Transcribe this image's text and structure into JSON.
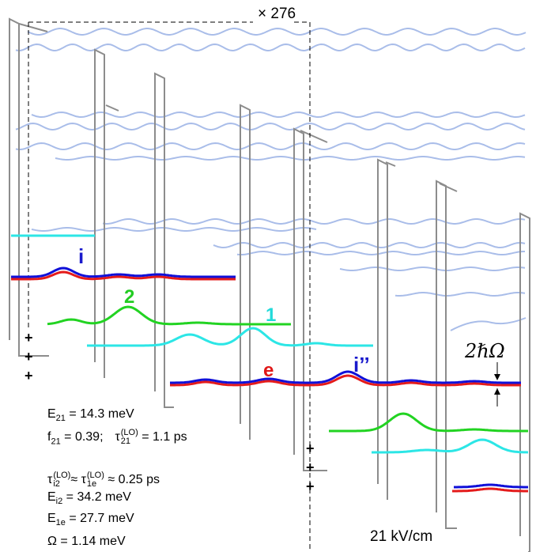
{
  "magnification": "× 276",
  "field": "21 kV/cm",
  "splitting_label": "2ℏΩ",
  "state_labels": {
    "i": "i",
    "two": "2",
    "one": "1",
    "e": "e",
    "i_double_prime": "i’’"
  },
  "plus_signs": [
    "+",
    "+",
    "+"
  ],
  "params": {
    "E21": {
      "sym": "E",
      "sub": "21",
      "val": " = 14.3 meV"
    },
    "f21": {
      "sym": "f",
      "sub": "21",
      "val": " = 0.39;"
    },
    "tau21": {
      "sym": "τ",
      "sup": "(LO)",
      "sub": "21",
      "val": " = 1.1 ps"
    },
    "tau_i2": {
      "sym": "τ",
      "sup": "(LO)",
      "sub": "i2",
      "sep": "≈"
    },
    "tau_1e": {
      "sym": "τ",
      "sup": "(LO)",
      "sub": "1e",
      "val": " ≈ 0.25 ps"
    },
    "Ei2": {
      "sym": "E",
      "sub": "i2",
      "val": " = 34.2 meV"
    },
    "E1e": {
      "sym": "E",
      "sub": "1e",
      "val": " = 27.7 meV"
    },
    "Omega": {
      "sym": "Ω",
      "val": " = 1.14 meV"
    }
  },
  "colors": {
    "barrier": "#8c8c8c",
    "continuum": "#a9bde9",
    "blue": "#1010d8",
    "red": "#e41b1b",
    "green": "#22d322",
    "cyan": "#2ce6e6",
    "label_blue": "#1a1acc",
    "label_green": "#22cc22",
    "label_cyan": "#22dada",
    "label_red": "#e01818"
  }
}
